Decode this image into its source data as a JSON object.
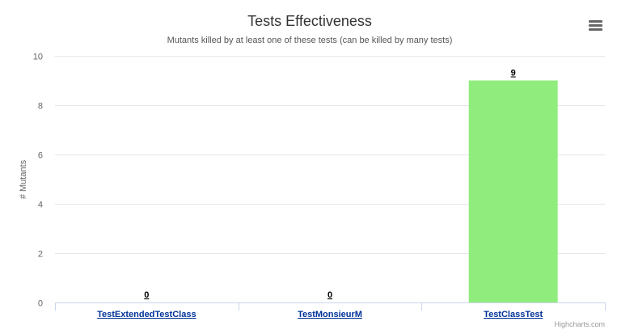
{
  "chart_data": {
    "type": "bar",
    "title": "Tests Effectiveness",
    "subtitle": "Mutants killed by at least one of these tests (can be killed by many tests)",
    "xlabel": "",
    "ylabel": "# Mutants",
    "categories": [
      "TestExtendedTestClass",
      "TestMonsieurM",
      "TestClassTest"
    ],
    "values": [
      0,
      0,
      9
    ],
    "data_labels": [
      "0",
      "0",
      "9"
    ],
    "ylim": [
      0,
      10
    ],
    "yticks": [
      0,
      2,
      4,
      6,
      8,
      10
    ],
    "grid": true,
    "legend": "none",
    "bar_color": "#90ed7d"
  },
  "ui": {
    "menu_icon": "hamburger-menu-icon",
    "credits": "Highcharts.com"
  }
}
